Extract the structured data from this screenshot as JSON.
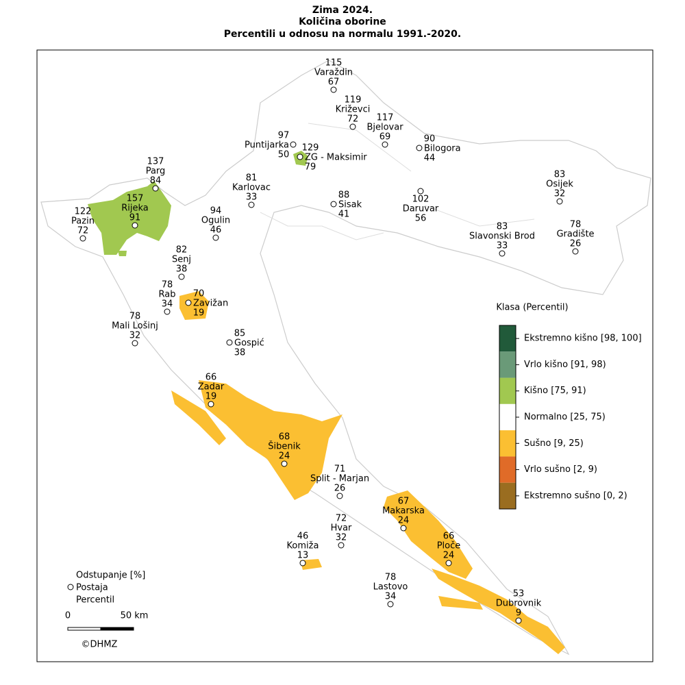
{
  "header": {
    "title_lines": [
      "Zima 2024.",
      "Količina oborine",
      "Percentili u odnosu na normalu 1991.-2020."
    ]
  },
  "stations": [
    {
      "name": "Varaždin",
      "deviation": 115,
      "percentile": 67
    },
    {
      "name": "Križevci",
      "deviation": 119,
      "percentile": 72
    },
    {
      "name": "Bjelovar",
      "deviation": 117,
      "percentile": 69
    },
    {
      "name": "Bilogora",
      "deviation": 90,
      "percentile": 44
    },
    {
      "name": "Puntijarka",
      "deviation": 97,
      "percentile": 50
    },
    {
      "name": "ZG - Maksimir",
      "deviation": 129,
      "percentile": 79
    },
    {
      "name": "Karlovac",
      "deviation": 81,
      "percentile": 33
    },
    {
      "name": "Sisak",
      "deviation": 88,
      "percentile": 41
    },
    {
      "name": "Daruvar",
      "deviation": 102,
      "percentile": 56
    },
    {
      "name": "Osijek",
      "deviation": 83,
      "percentile": 32
    },
    {
      "name": "Gradište",
      "deviation": 78,
      "percentile": 26
    },
    {
      "name": "Slavonski Brod",
      "deviation": 83,
      "percentile": 33
    },
    {
      "name": "Parg",
      "deviation": 137,
      "percentile": 84
    },
    {
      "name": "Rijeka",
      "deviation": 157,
      "percentile": 91
    },
    {
      "name": "Pazin",
      "deviation": 122,
      "percentile": 72
    },
    {
      "name": "Ogulin",
      "deviation": 94,
      "percentile": 46
    },
    {
      "name": "Senj",
      "deviation": 82,
      "percentile": 38
    },
    {
      "name": "Rab",
      "deviation": 78,
      "percentile": 34
    },
    {
      "name": "Zavižan",
      "deviation": 70,
      "percentile": 19
    },
    {
      "name": "Mali Lošinj",
      "deviation": 78,
      "percentile": 32
    },
    {
      "name": "Gospić",
      "deviation": 85,
      "percentile": 38
    },
    {
      "name": "Zadar",
      "deviation": 66,
      "percentile": 19
    },
    {
      "name": "Šibenik",
      "deviation": 68,
      "percentile": 24
    },
    {
      "name": "Split - Marjan",
      "deviation": 71,
      "percentile": 26
    },
    {
      "name": "Makarska",
      "deviation": 67,
      "percentile": 24
    },
    {
      "name": "Hvar",
      "deviation": 72,
      "percentile": 32
    },
    {
      "name": "Ploče",
      "deviation": 66,
      "percentile": 24
    },
    {
      "name": "Komiža",
      "deviation": 46,
      "percentile": 13
    },
    {
      "name": "Lastovo",
      "deviation": 78,
      "percentile": 34
    },
    {
      "name": "Dubrovnik",
      "deviation": 53,
      "percentile": 9
    }
  ],
  "legend": {
    "title": "Klasa (Percentil)",
    "classes": [
      {
        "label": "Ekstremno kišno [98, 100]",
        "color": "#215a3a"
      },
      {
        "label": "Vrlo kišno [91, 98)",
        "color": "#6a9a78"
      },
      {
        "label": "Kišno [75, 91)",
        "color": "#a1c850"
      },
      {
        "label": "Normalno [25, 75)",
        "color": "#ffffff"
      },
      {
        "label": "Sušno [9, 25)",
        "color": "#fbbf32"
      },
      {
        "label": "Vrlo sušno [2, 9)",
        "color": "#e06b28"
      },
      {
        "label": "Ekstremno sušno [0, 2)",
        "color": "#9a6d20"
      }
    ]
  },
  "key": {
    "lines": [
      "Odstupanje [%]",
      "Postaja",
      "Percentil"
    ]
  },
  "scale_bar": {
    "labels": [
      "0",
      "50 km"
    ]
  },
  "credit": "©DHMZ"
}
